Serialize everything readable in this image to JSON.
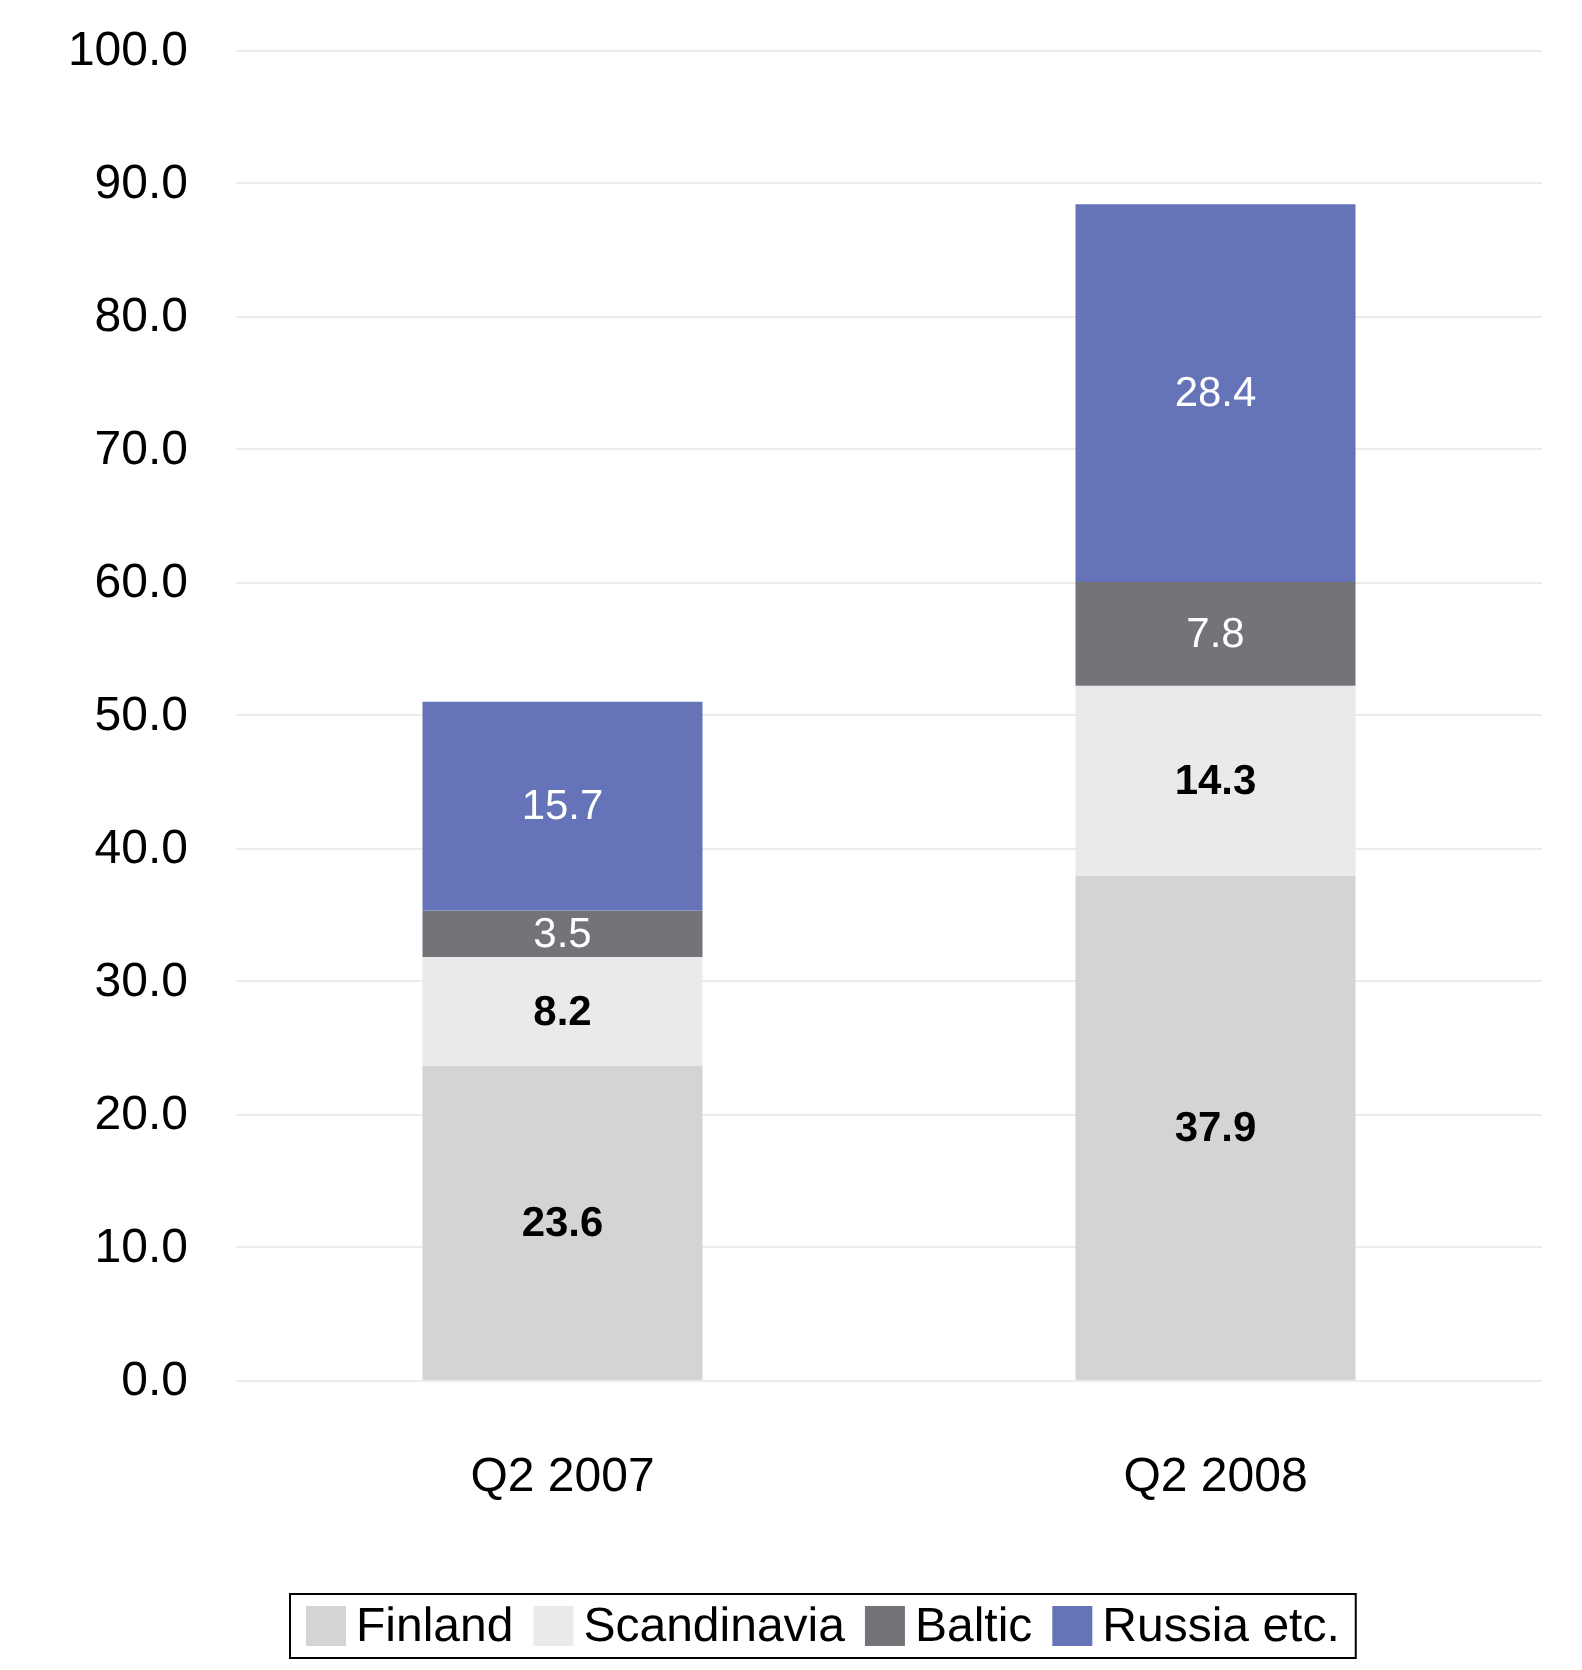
{
  "chart_data": {
    "type": "bar",
    "stacked": true,
    "categories": [
      "Q2 2007",
      "Q2 2008"
    ],
    "series": [
      {
        "name": "Finland",
        "color": "#d4d4d6",
        "values": [
          23.6,
          37.9
        ]
      },
      {
        "name": "Scandinavia",
        "color": "#e9eaec",
        "values": [
          8.2,
          14.3
        ]
      },
      {
        "name": "Baltic",
        "color": "#747377",
        "values": [
          3.5,
          7.8
        ]
      },
      {
        "name": "Russia etc.",
        "color": "#6574b8",
        "values": [
          15.7,
          28.4
        ]
      }
    ],
    "ylim": [
      0,
      100
    ],
    "yticks": [
      {
        "value": 0,
        "label": "0.0"
      },
      {
        "value": 10,
        "label": "10.0"
      },
      {
        "value": 20,
        "label": "20.0"
      },
      {
        "value": 30,
        "label": "30.0"
      },
      {
        "value": 40,
        "label": "40.0"
      },
      {
        "value": 50,
        "label": "50.0"
      },
      {
        "value": 60,
        "label": "60.0"
      },
      {
        "value": 70,
        "label": "70.0"
      },
      {
        "value": 80,
        "label": "80.0"
      },
      {
        "value": 90,
        "label": "90.0"
      },
      {
        "value": 100,
        "label": "100.0"
      }
    ],
    "grid": "y",
    "legend": "bottom",
    "data_labels": true
  }
}
